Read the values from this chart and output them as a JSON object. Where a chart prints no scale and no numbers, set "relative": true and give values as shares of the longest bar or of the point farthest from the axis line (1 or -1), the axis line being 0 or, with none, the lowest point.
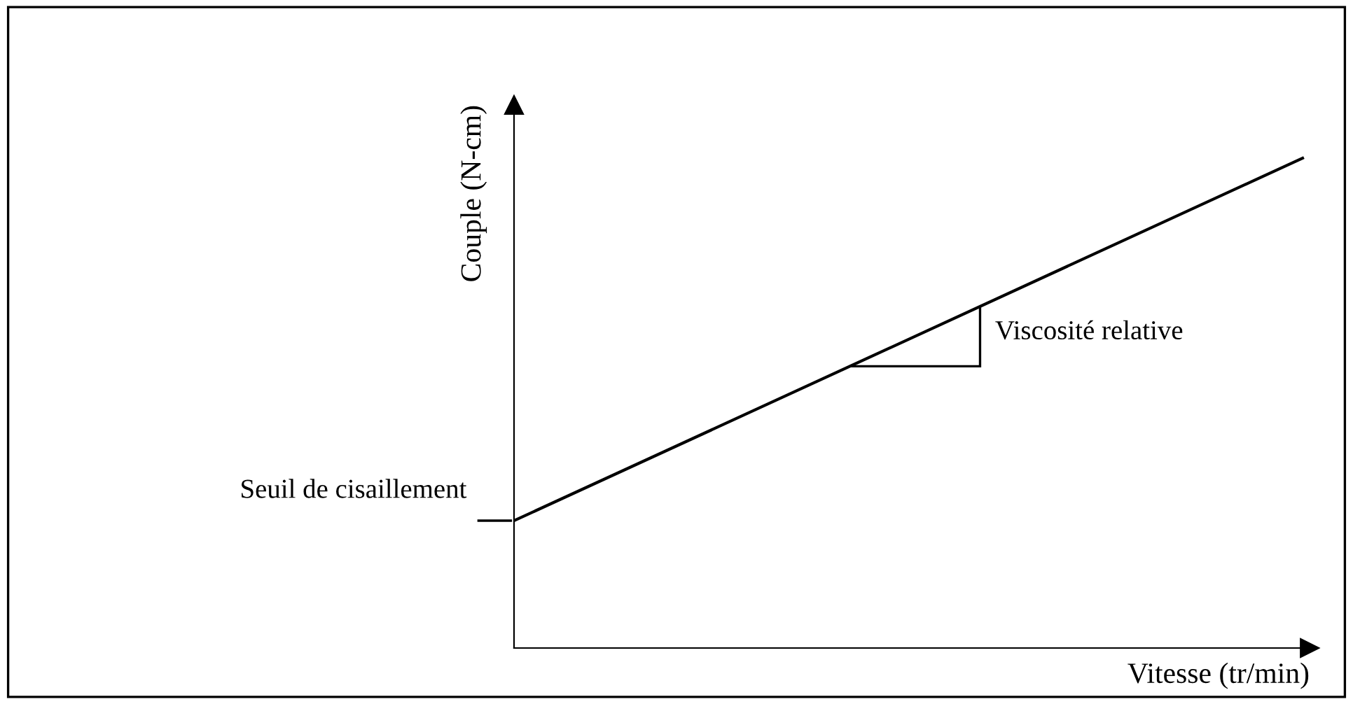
{
  "chart_data": {
    "type": "line",
    "relative": true,
    "xlabel": "Vitesse (tr/min)",
    "ylabel": "Couple (N-cm)",
    "categories": [
      null,
      null
    ],
    "series": [
      {
        "color": "#000000",
        "values": [
          0.26,
          1
        ]
      }
    ],
    "annotations": [
      "Seuil de cisaillement",
      "Viscosité relative"
    ],
    "marker": "none",
    "line_style": "solid"
  }
}
